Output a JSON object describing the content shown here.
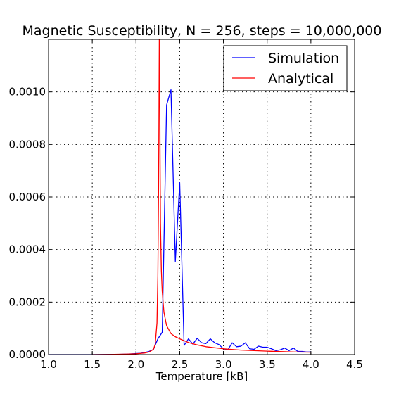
{
  "chart_data": {
    "type": "line",
    "title": "Magnetic Susceptibility, N = 256, steps = 10,000,000",
    "xlabel": "Temperature [kB]",
    "ylabel": "",
    "xlim": [
      1.0,
      4.5
    ],
    "ylim": [
      0.0,
      0.0012
    ],
    "xticks": [
      "1.0",
      "1.5",
      "2.0",
      "2.5",
      "3.0",
      "3.5",
      "4.0",
      "4.5"
    ],
    "yticks": [
      "0.0000",
      "0.0002",
      "0.0004",
      "0.0006",
      "0.0008",
      "0.0010"
    ],
    "grid": true,
    "legend_position": "top-right",
    "series": [
      {
        "name": "Simulation",
        "color": "#0000ff",
        "x": [
          1.0,
          1.5,
          1.8,
          1.9,
          2.0,
          2.05,
          2.1,
          2.15,
          2.2,
          2.25,
          2.3,
          2.35,
          2.4,
          2.45,
          2.5,
          2.55,
          2.6,
          2.65,
          2.7,
          2.75,
          2.8,
          2.85,
          2.9,
          2.95,
          3.0,
          3.05,
          3.1,
          3.15,
          3.2,
          3.25,
          3.3,
          3.35,
          3.4,
          3.45,
          3.5,
          3.55,
          3.6,
          3.65,
          3.7,
          3.75,
          3.8,
          3.85,
          3.9,
          3.95,
          4.0
        ],
        "values": [
          0.0,
          0.0,
          1e-06,
          2e-06,
          4e-06,
          5e-06,
          8e-06,
          1.2e-05,
          2e-05,
          6e-05,
          8.5e-05,
          0.00095,
          0.001008,
          0.000355,
          0.000655,
          3.5e-05,
          6e-05,
          4e-05,
          6.2e-05,
          4.5e-05,
          4.2e-05,
          6e-05,
          4.5e-05,
          3.8e-05,
          2.2e-05,
          1.8e-05,
          4.5e-05,
          3e-05,
          3.2e-05,
          4.5e-05,
          2.2e-05,
          2e-05,
          3.2e-05,
          2.8e-05,
          2.8e-05,
          2.2e-05,
          1.5e-05,
          1.8e-05,
          2.5e-05,
          1.5e-05,
          2.5e-05,
          1.2e-05,
          1.2e-05,
          1e-05,
          1e-05
        ]
      },
      {
        "name": "Analytical",
        "color": "#ff0000",
        "x": [
          1.5,
          1.7,
          1.9,
          2.0,
          2.1,
          2.15,
          2.2,
          2.22,
          2.24,
          2.25,
          2.26,
          2.265,
          2.268,
          2.27,
          2.275,
          2.28,
          2.29,
          2.3,
          2.32,
          2.35,
          2.4,
          2.45,
          2.5,
          2.6,
          2.7,
          2.8,
          3.0,
          3.2,
          3.5,
          3.8,
          4.0
        ],
        "values": [
          0.0,
          5e-07,
          2e-06,
          3e-06,
          6e-06,
          1e-05,
          2e-05,
          4e-05,
          0.00012,
          0.0003,
          0.0007,
          0.0011,
          0.0013,
          0.0013,
          0.0008,
          0.0005,
          0.00032,
          0.00024,
          0.00016,
          0.00011,
          8e-05,
          6.8e-05,
          6e-05,
          4.6e-05,
          3.7e-05,
          3e-05,
          2.2e-05,
          1.7e-05,
          1.3e-05,
          1e-05,
          9e-06
        ]
      }
    ]
  }
}
